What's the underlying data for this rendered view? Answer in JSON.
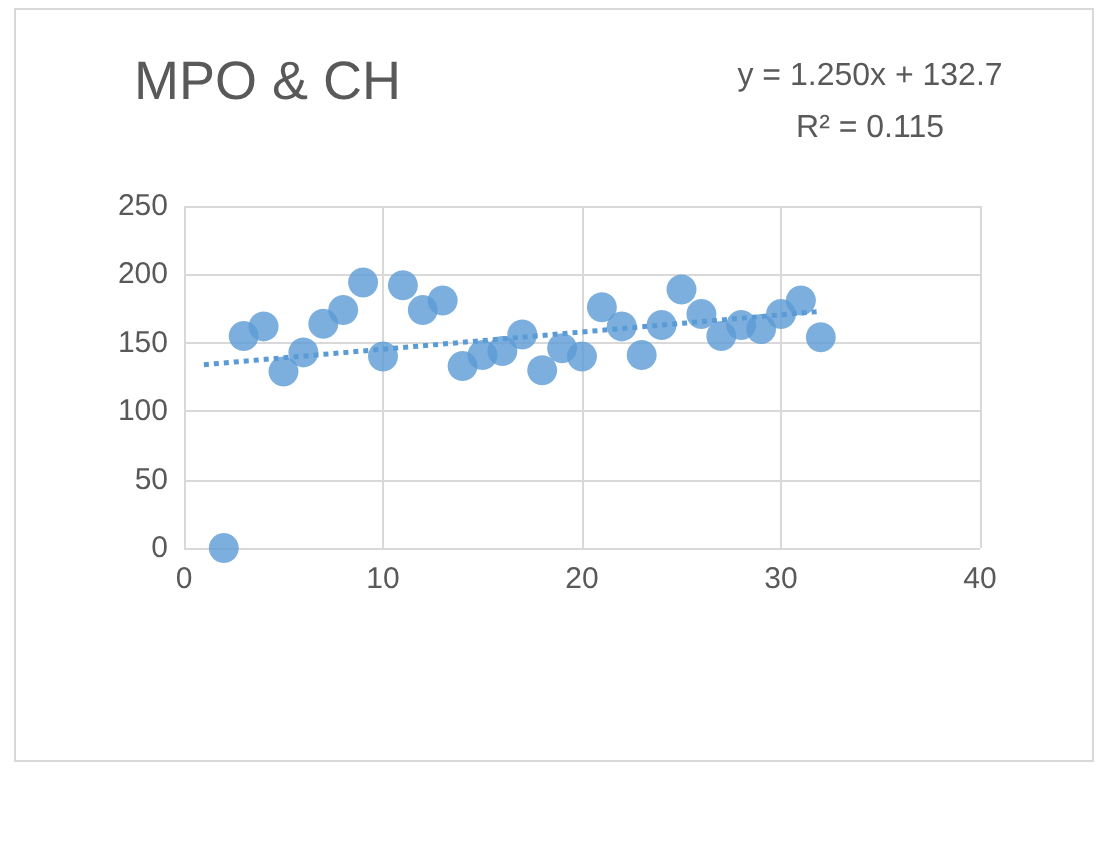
{
  "chart_data": {
    "type": "scatter",
    "title": "MPO & CH",
    "annotations": [
      "y = 1.250x + 132.7",
      "R² = 0.115"
    ],
    "xlim": [
      0,
      40
    ],
    "xticks": [
      0,
      10,
      20,
      30,
      40
    ],
    "ylim": [
      0,
      250
    ],
    "yticks": [
      0,
      50,
      100,
      150,
      200,
      250
    ],
    "grid": true,
    "series": [
      {
        "marker": "circle",
        "color": "#5b9bd5",
        "x": [
          2,
          3,
          4,
          5,
          6,
          7,
          8,
          9,
          10,
          11,
          12,
          13,
          14,
          15,
          16,
          17,
          18,
          19,
          20,
          21,
          22,
          23,
          24,
          25,
          26,
          27,
          28,
          29,
          30,
          31,
          32
        ],
        "values": [
          0,
          155,
          162,
          129,
          143,
          164,
          174,
          194,
          140,
          192,
          174,
          181,
          133,
          141,
          144,
          156,
          130,
          146,
          140,
          176,
          162,
          141,
          163,
          189,
          171,
          155,
          163,
          160,
          171,
          181,
          154
        ]
      },
      {
        "type": "line",
        "color": "#5b9bd5",
        "line_style": "dotted",
        "x": [
          1,
          32
        ],
        "values": [
          134,
          173
        ]
      }
    ]
  }
}
